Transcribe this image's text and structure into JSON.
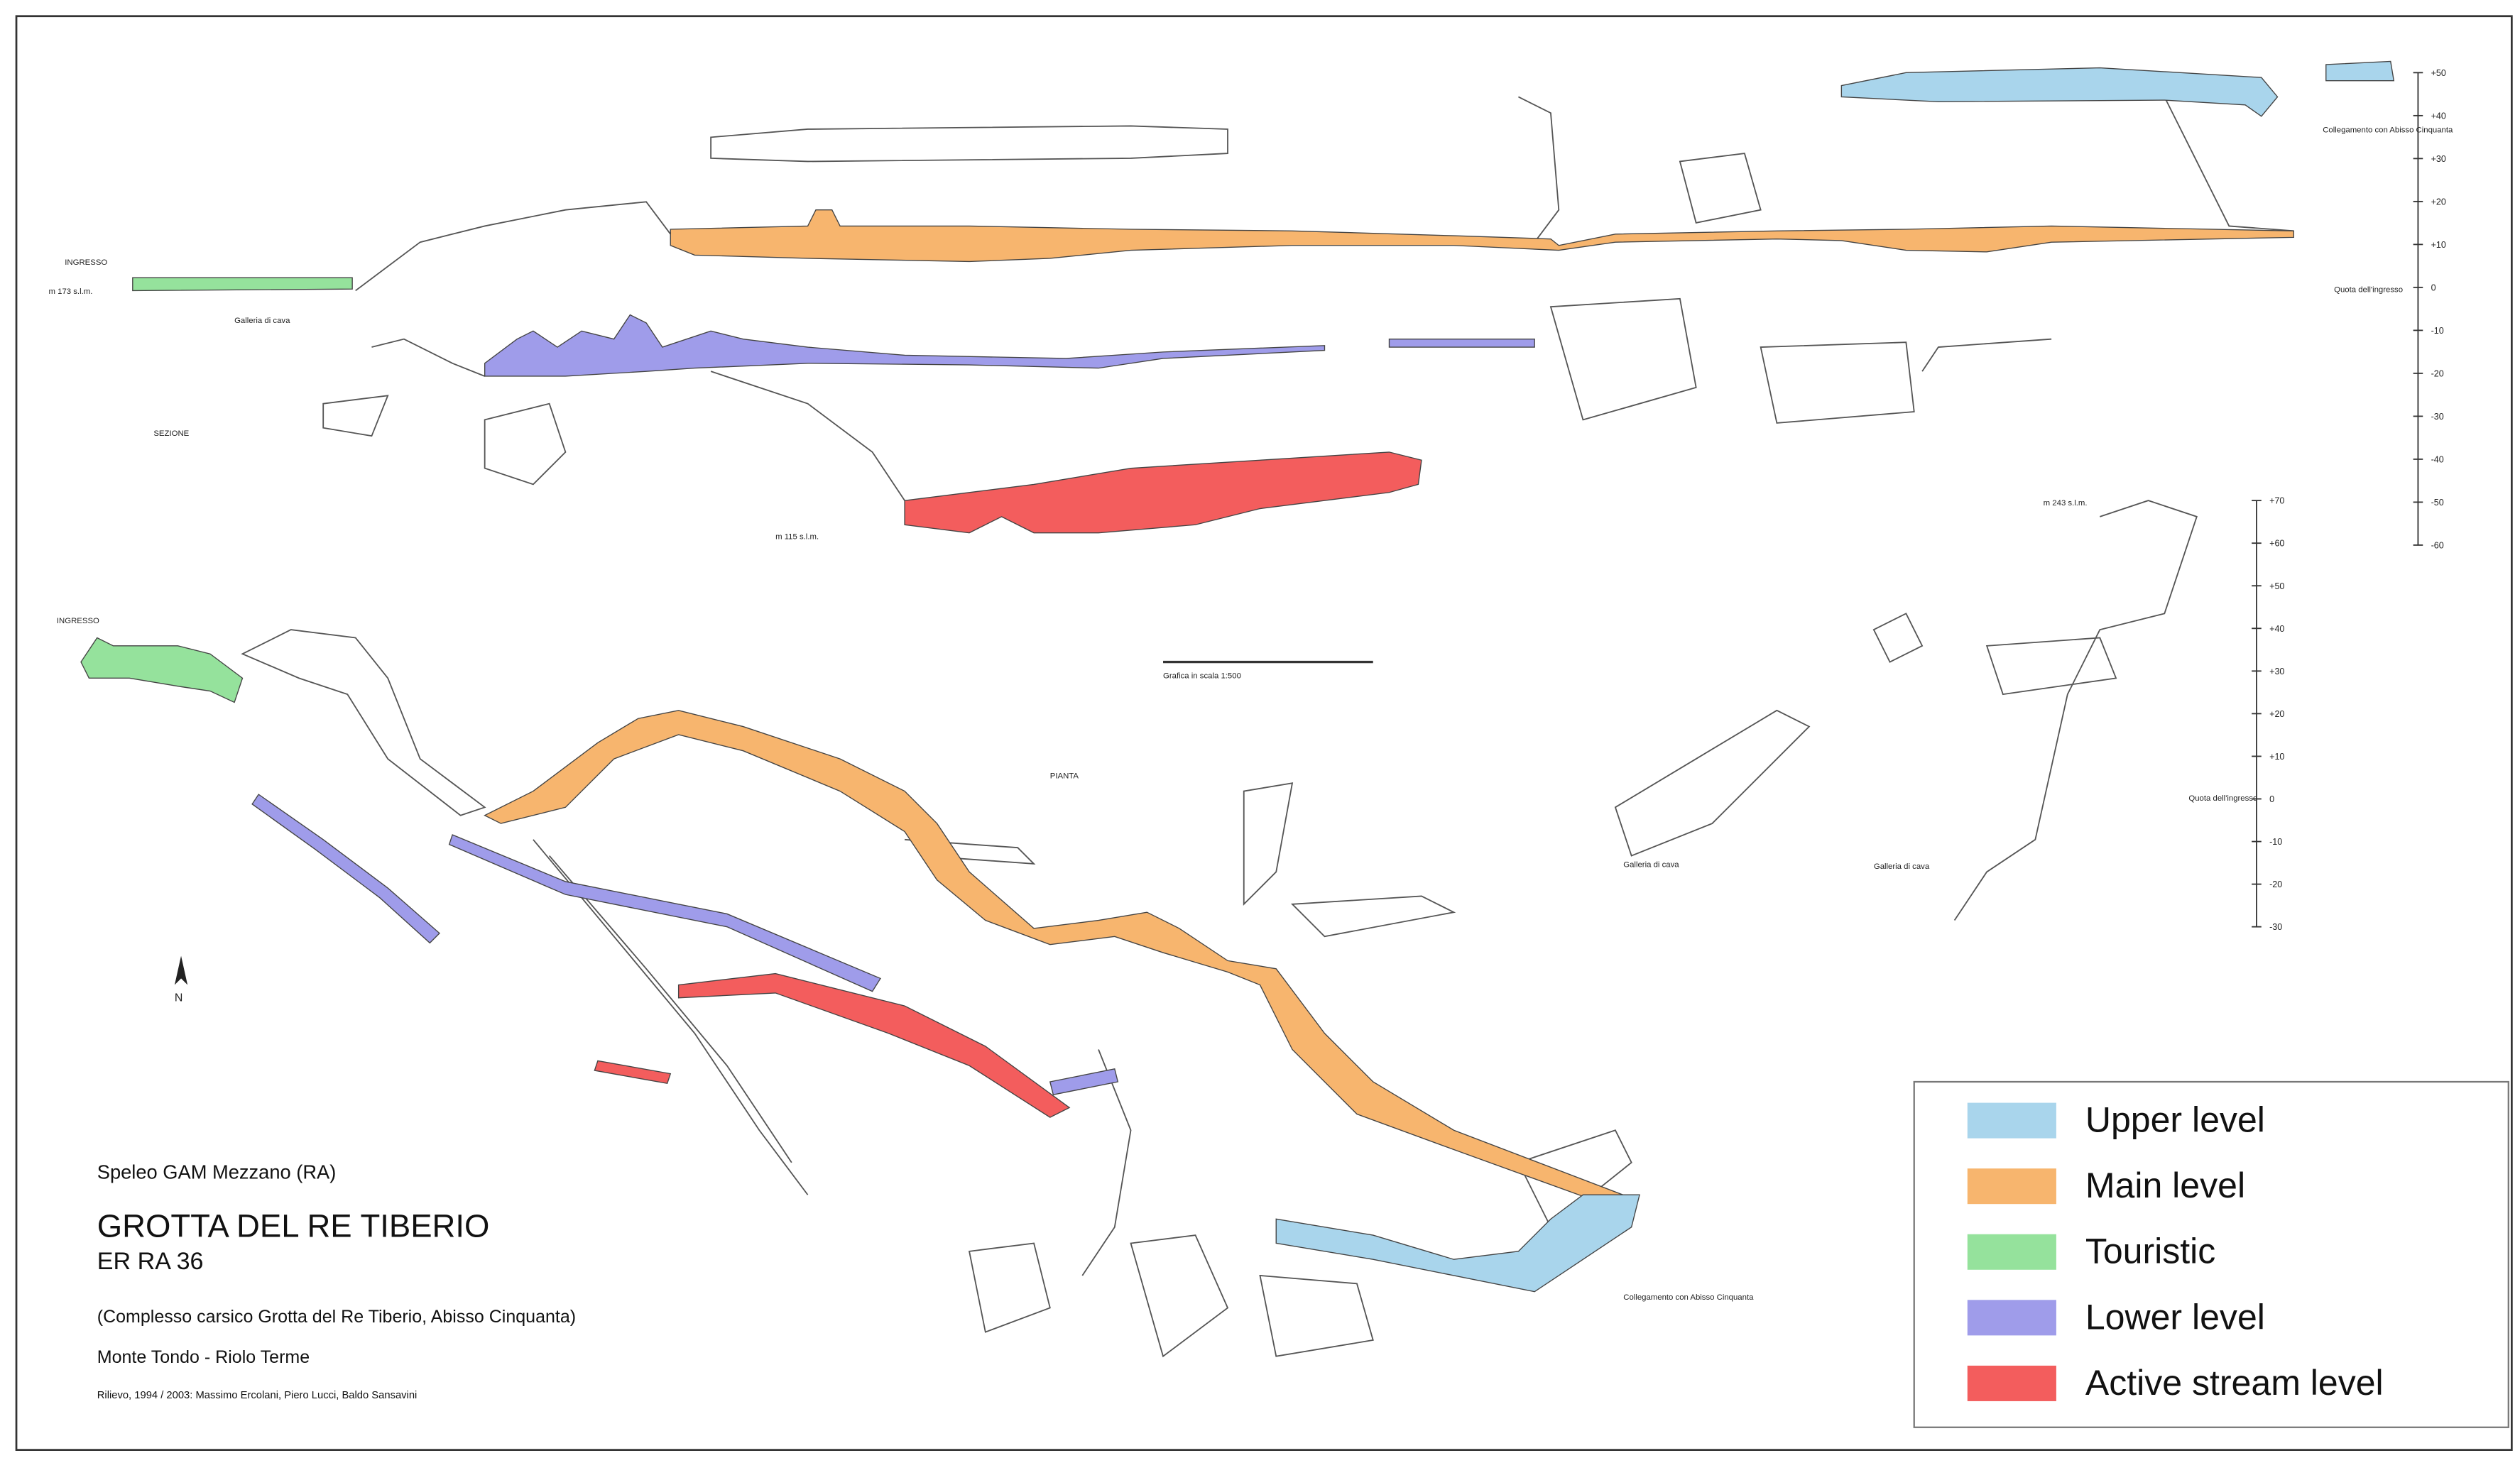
{
  "title_block": {
    "organization": "Speleo GAM Mezzano (RA)",
    "title": "GROTTA DEL RE TIBERIO",
    "code": "ER RA 36",
    "subtitle": "(Complesso carsico Grotta del Re Tiberio, Abisso Cinquanta)",
    "location": "Monte Tondo - Riolo Terme",
    "credits": "Rilievo, 1994 / 2003: Massimo Ercolani, Piero Lucci, Baldo Sansavini"
  },
  "legend": [
    {
      "label": "Upper level",
      "color": "#a9d5ec"
    },
    {
      "label": "Main level",
      "color": "#f7b56e"
    },
    {
      "label": "Touristic",
      "color": "#95e29c"
    },
    {
      "label": "Lower level",
      "color": "#9f9cea"
    },
    {
      "label": "Active stream level",
      "color": "#f35d5d"
    }
  ],
  "labels": {
    "section_entrance": "INGRESSO",
    "section_altitude": "m 173 s.l.m.",
    "section": "SEZIONE",
    "plan_entrance": "INGRESSO",
    "plan": "PIANTA",
    "north": "N",
    "lower_altitude": "m 115 s.l.m.",
    "right_altitude": "m 243 s.l.m.",
    "entrance_height_1": "Quota dell'ingresso",
    "entrance_height_2": "Quota dell'ingresso",
    "connection_section": "Collegamento con Abisso Cinquanta",
    "connection_plan": "Collegamento con Abisso Cinquanta",
    "scale_caption": "Grafica in scala 1:500",
    "quarry_gallery_1": "Galleria di cava",
    "quarry_gallery_2": "Galleria di cava",
    "quarry_gallery_3": "Galleria di cava"
  },
  "elevation_scales": [
    {
      "ticks": [
        "+50",
        "+40",
        "+30",
        "+20",
        "+10",
        "0",
        "-10",
        "-20",
        "-30",
        "-40",
        "-50",
        "-60"
      ]
    },
    {
      "ticks": [
        "+70",
        "+60",
        "+50",
        "+40",
        "+30",
        "+20",
        "+10",
        "0",
        "-10",
        "-20",
        "-30"
      ]
    }
  ]
}
